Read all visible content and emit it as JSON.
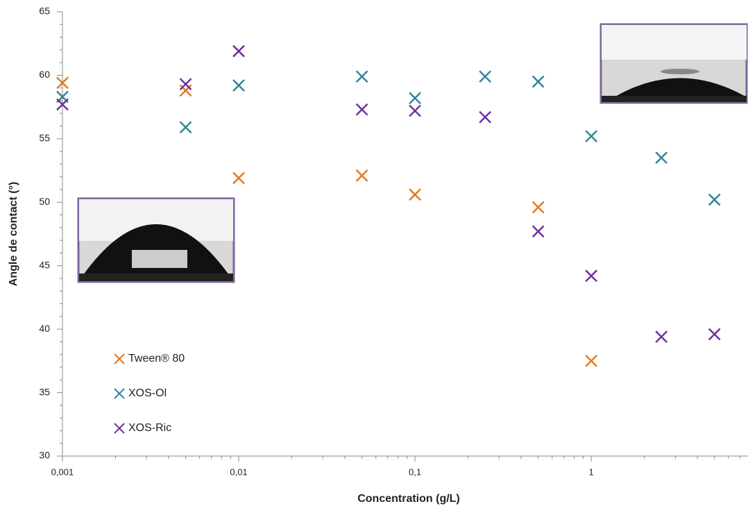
{
  "chart_data": {
    "type": "scatter",
    "log_x": true,
    "xlabel": "Concentration (g/L)",
    "ylabel": "Angle de contact (°)",
    "x": [
      0.001,
      0.005,
      0.01,
      0.05,
      0.1,
      0.25,
      0.5,
      1,
      2.5,
      5
    ],
    "series": [
      {
        "name": "Tween® 80",
        "color": "#e07b24",
        "values": [
          59.4,
          58.8,
          51.9,
          52.1,
          50.6,
          null,
          49.6,
          37.5,
          null,
          null
        ]
      },
      {
        "name": "XOS-Ol",
        "color": "#31859c",
        "values": [
          58.3,
          55.9,
          59.2,
          59.9,
          58.2,
          59.9,
          59.5,
          55.2,
          53.5,
          50.2
        ]
      },
      {
        "name": "XOS-Ric",
        "color": "#7030a0",
        "values": [
          57.7,
          59.3,
          61.9,
          57.3,
          57.2,
          56.7,
          47.7,
          44.2,
          39.4,
          39.6
        ]
      }
    ],
    "xlim": [
      0.001,
      7.75
    ],
    "xticks": [
      {
        "value": 0.001,
        "label": "0,001"
      },
      {
        "value": 0.01,
        "label": "0,01"
      },
      {
        "value": 0.1,
        "label": "0,1"
      },
      1
    ],
    "ylim": [
      30,
      65
    ],
    "yticks": [
      30,
      35,
      40,
      45,
      50,
      55,
      60,
      65
    ],
    "legend": "lower-left",
    "grid": false
  }
}
